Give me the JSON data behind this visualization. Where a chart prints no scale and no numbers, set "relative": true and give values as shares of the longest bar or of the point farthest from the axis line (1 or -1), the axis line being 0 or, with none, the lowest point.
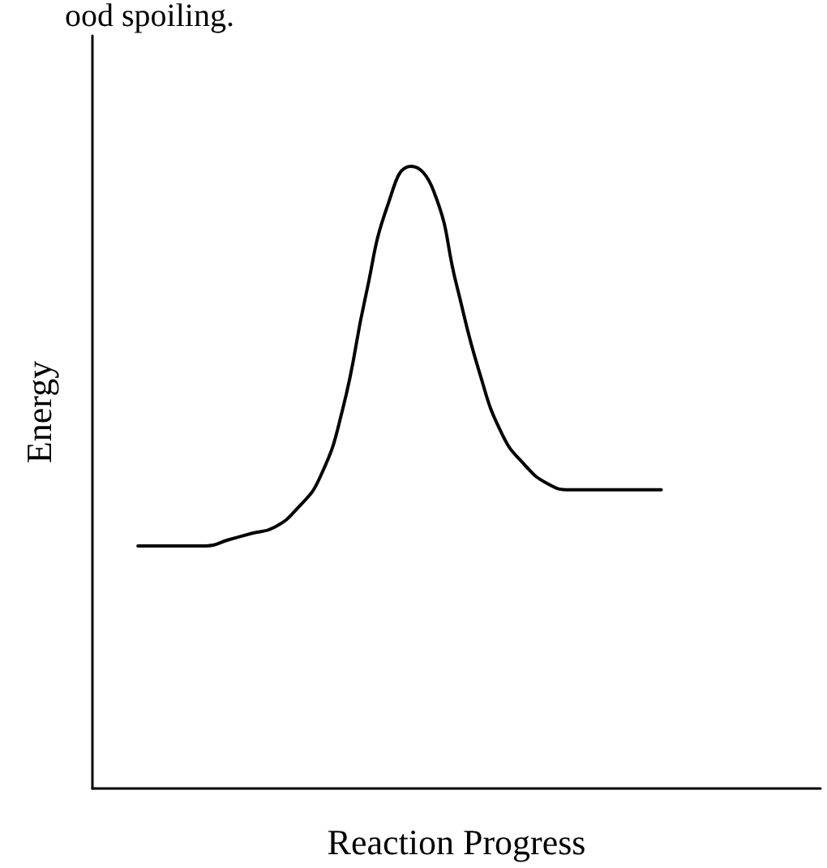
{
  "chart_data": {
    "type": "line",
    "relative": true,
    "xlabel": "Reaction Progress",
    "ylabel": "Energy",
    "annotations": [
      "ood spoiling."
    ],
    "categories": [
      null,
      null,
      null,
      null,
      null,
      null,
      null,
      null,
      null,
      null,
      null,
      null,
      null,
      null,
      null,
      null,
      null,
      null,
      null,
      null,
      null,
      null,
      null,
      null,
      null,
      null,
      null,
      null,
      null,
      null,
      null,
      null,
      null
    ],
    "series": [
      {
        "color": "#000000",
        "values": [
          null,
          null,
          0.39,
          0.39,
          0.39,
          0.39,
          0.4,
          0.41,
          0.42,
          0.45,
          0.5,
          0.61,
          0.79,
          0.94,
          1,
          0.96,
          0.81,
          0.67,
          0.57,
          0.52,
          0.49,
          0.48,
          0.48,
          0.48,
          0.48,
          0.48,
          null,
          null,
          null,
          null,
          null,
          null,
          null
        ]
      }
    ],
    "marker": "none",
    "grid": false
  }
}
